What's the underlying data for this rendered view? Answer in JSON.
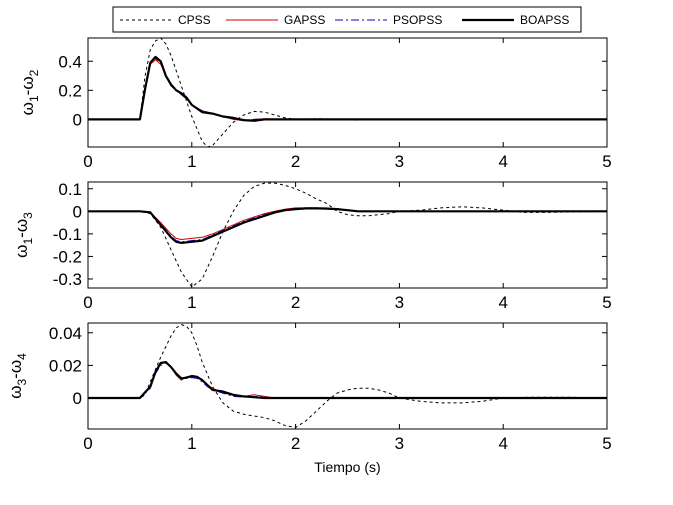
{
  "legend": {
    "entries": [
      {
        "name": "CPSS",
        "color": "#000000",
        "dash": "3,3",
        "width": 1
      },
      {
        "name": "GAPSS",
        "color": "#cc0000",
        "dash": "",
        "width": 1
      },
      {
        "name": "PSOPSS",
        "color": "#0000cc",
        "dash": "8,3,2,3",
        "width": 1
      },
      {
        "name": "BOAPSS",
        "color": "#000000",
        "dash": "",
        "width": 2.2
      }
    ]
  },
  "chart_data": [
    {
      "type": "line",
      "title": "",
      "xlabel": "",
      "ylabel": {
        "base1": "ω",
        "sub1": "1",
        "sep": "-",
        "base2": "ω",
        "sub2": "2"
      },
      "xlim": [
        0,
        5
      ],
      "ylim": [
        -0.19,
        0.56
      ],
      "xticks": [
        0,
        1,
        2,
        3,
        4,
        5
      ],
      "xtick_labels": [
        "0",
        "1",
        "2",
        "3",
        "4",
        "5"
      ],
      "yticks": [
        0,
        0.2,
        0.4
      ],
      "ytick_labels": [
        "0",
        "0.2",
        "0.4"
      ],
      "series": [
        {
          "name": "CPSS",
          "x": [
            0,
            0.5,
            0.55,
            0.6,
            0.65,
            0.7,
            0.75,
            0.8,
            0.9,
            1.0,
            1.1,
            1.15,
            1.2,
            1.3,
            1.4,
            1.5,
            1.6,
            1.7,
            1.8,
            1.9,
            2.0,
            2.2,
            2.4,
            2.6,
            2.8,
            3.0,
            3.2,
            3.5,
            4.0,
            4.5,
            5.0
          ],
          "y": [
            0,
            0,
            0.3,
            0.48,
            0.54,
            0.56,
            0.52,
            0.44,
            0.23,
            0.02,
            -0.15,
            -0.19,
            -0.18,
            -0.1,
            -0.02,
            0.03,
            0.055,
            0.05,
            0.03,
            0.01,
            0.0,
            0.005,
            0.0,
            -0.005,
            0.0,
            0.0,
            0.0,
            0.0,
            0.0,
            0.0,
            0.0
          ]
        },
        {
          "name": "GAPSS",
          "x": [
            0,
            0.5,
            0.55,
            0.6,
            0.65,
            0.7,
            0.75,
            0.8,
            0.85,
            0.9,
            0.95,
            1.0,
            1.1,
            1.2,
            1.3,
            1.4,
            1.5,
            1.6,
            1.7,
            1.8,
            2.0,
            2.5,
            3.0,
            4.0,
            5.0
          ],
          "y": [
            0,
            0,
            0.2,
            0.38,
            0.41,
            0.38,
            0.3,
            0.23,
            0.2,
            0.17,
            0.15,
            0.1,
            0.06,
            0.04,
            0.02,
            0.0,
            -0.01,
            0.0,
            0.005,
            0.0,
            0.0,
            0.0,
            0.0,
            0.0,
            0.0
          ]
        },
        {
          "name": "PSOPSS",
          "x": [
            0,
            0.5,
            0.55,
            0.6,
            0.65,
            0.7,
            0.75,
            0.8,
            0.85,
            0.9,
            0.95,
            1.0,
            1.1,
            1.2,
            1.3,
            1.4,
            1.5,
            1.6,
            1.7,
            1.8,
            2.0,
            2.5,
            3.0,
            4.0,
            5.0
          ],
          "y": [
            0,
            0,
            0.21,
            0.39,
            0.42,
            0.39,
            0.31,
            0.24,
            0.2,
            0.17,
            0.14,
            0.1,
            0.06,
            0.04,
            0.02,
            0.005,
            -0.005,
            0.0,
            0.003,
            0.0,
            0.0,
            0.0,
            0.0,
            0.0,
            0.0
          ]
        },
        {
          "name": "BOAPSS",
          "x": [
            0,
            0.5,
            0.55,
            0.6,
            0.65,
            0.7,
            0.75,
            0.8,
            0.85,
            0.9,
            0.95,
            1.0,
            1.1,
            1.2,
            1.3,
            1.4,
            1.5,
            1.6,
            1.7,
            1.8,
            2.0,
            2.5,
            3.0,
            4.0,
            5.0
          ],
          "y": [
            0,
            0,
            0.21,
            0.39,
            0.43,
            0.4,
            0.3,
            0.24,
            0.2,
            0.18,
            0.15,
            0.1,
            0.05,
            0.04,
            0.02,
            0.01,
            -0.005,
            -0.01,
            0.0,
            0.0,
            0.0,
            0.0,
            0.0,
            0.0,
            0.0
          ]
        }
      ]
    },
    {
      "type": "line",
      "title": "",
      "xlabel": "",
      "ylabel": {
        "base1": "ω",
        "sub1": "1",
        "sep": "-",
        "base2": "ω",
        "sub2": "3"
      },
      "xlim": [
        0,
        5
      ],
      "ylim": [
        -0.34,
        0.13
      ],
      "xticks": [
        0,
        1,
        2,
        3,
        4,
        5
      ],
      "xtick_labels": [
        "0",
        "1",
        "2",
        "3",
        "4",
        "5"
      ],
      "yticks": [
        -0.3,
        -0.2,
        -0.1,
        0,
        0.1
      ],
      "ytick_labels": [
        "-0.3",
        "-0.2",
        "-0.1",
        "0",
        "0.1"
      ],
      "series": [
        {
          "name": "CPSS",
          "x": [
            0,
            0.5,
            0.6,
            0.7,
            0.8,
            0.9,
            1.0,
            1.1,
            1.2,
            1.3,
            1.4,
            1.5,
            1.6,
            1.7,
            1.8,
            1.9,
            2.0,
            2.1,
            2.2,
            2.3,
            2.4,
            2.5,
            2.6,
            2.7,
            2.8,
            2.9,
            3.0,
            3.2,
            3.4,
            3.6,
            3.8,
            4.0,
            4.2,
            4.4,
            4.6,
            5.0
          ],
          "y": [
            0,
            0,
            -0.01,
            -0.07,
            -0.17,
            -0.27,
            -0.335,
            -0.3,
            -0.2,
            -0.09,
            0.0,
            0.07,
            0.11,
            0.125,
            0.125,
            0.115,
            0.1,
            0.08,
            0.055,
            0.035,
            0.0,
            -0.015,
            -0.02,
            -0.02,
            -0.015,
            -0.01,
            0.0,
            0.005,
            0.015,
            0.02,
            0.015,
            0.005,
            -0.005,
            -0.005,
            -0.003,
            0
          ]
        },
        {
          "name": "GAPSS",
          "x": [
            0,
            0.5,
            0.6,
            0.7,
            0.8,
            0.85,
            0.9,
            1.0,
            1.1,
            1.2,
            1.3,
            1.4,
            1.5,
            1.6,
            1.7,
            1.8,
            1.9,
            2.0,
            2.1,
            2.2,
            2.3,
            2.4,
            2.5,
            2.6,
            2.8,
            3.0,
            3.5,
            4.0,
            5.0
          ],
          "y": [
            0,
            0,
            -0.005,
            -0.05,
            -0.1,
            -0.12,
            -0.125,
            -0.12,
            -0.115,
            -0.1,
            -0.08,
            -0.06,
            -0.04,
            -0.025,
            -0.01,
            0.0,
            0.01,
            0.015,
            0.015,
            0.015,
            0.015,
            0.01,
            0.005,
            0.0,
            0.0,
            0.0,
            0.0,
            0.0,
            0.0
          ]
        },
        {
          "name": "PSOPSS",
          "x": [
            0,
            0.5,
            0.6,
            0.7,
            0.8,
            0.85,
            0.9,
            1.0,
            1.1,
            1.2,
            1.3,
            1.4,
            1.5,
            1.6,
            1.7,
            1.8,
            1.9,
            2.0,
            2.1,
            2.2,
            2.3,
            2.4,
            2.5,
            2.6,
            2.8,
            3.0,
            3.5,
            4.0,
            5.0
          ],
          "y": [
            0,
            0,
            -0.005,
            -0.055,
            -0.11,
            -0.13,
            -0.135,
            -0.13,
            -0.125,
            -0.105,
            -0.085,
            -0.065,
            -0.045,
            -0.03,
            -0.015,
            -0.003,
            0.007,
            0.012,
            0.015,
            0.015,
            0.013,
            0.01,
            0.005,
            0.0,
            0.0,
            0.0,
            0.0,
            0.0,
            0.0
          ]
        },
        {
          "name": "BOAPSS",
          "x": [
            0,
            0.5,
            0.6,
            0.7,
            0.8,
            0.85,
            0.9,
            1.0,
            1.1,
            1.2,
            1.3,
            1.4,
            1.5,
            1.6,
            1.7,
            1.8,
            1.9,
            2.0,
            2.1,
            2.2,
            2.3,
            2.4,
            2.5,
            2.6,
            2.8,
            3.0,
            3.5,
            4.0,
            5.0
          ],
          "y": [
            0,
            0,
            -0.005,
            -0.06,
            -0.115,
            -0.135,
            -0.14,
            -0.135,
            -0.13,
            -0.11,
            -0.09,
            -0.07,
            -0.05,
            -0.035,
            -0.02,
            -0.005,
            0.005,
            0.01,
            0.013,
            0.013,
            0.012,
            0.01,
            0.005,
            0.0,
            0.0,
            0.0,
            0.0,
            0.0,
            0.0
          ]
        }
      ]
    },
    {
      "type": "line",
      "title": "",
      "xlabel": "Tiempo (s)",
      "ylabel": {
        "base1": "ω",
        "sub1": "3",
        "sep": "-",
        "base2": "ω",
        "sub2": "4"
      },
      "xlim": [
        0,
        5
      ],
      "ylim": [
        -0.019,
        0.046
      ],
      "xticks": [
        0,
        1,
        2,
        3,
        4,
        5
      ],
      "xtick_labels": [
        "0",
        "1",
        "2",
        "3",
        "4",
        "5"
      ],
      "yticks": [
        0,
        0.02,
        0.04
      ],
      "ytick_labels": [
        "0",
        "0.02",
        "0.04"
      ],
      "series": [
        {
          "name": "CPSS",
          "x": [
            0,
            0.5,
            0.55,
            0.6,
            0.7,
            0.8,
            0.85,
            0.9,
            0.95,
            1.0,
            1.05,
            1.1,
            1.2,
            1.3,
            1.4,
            1.5,
            1.6,
            1.7,
            1.8,
            1.9,
            2.0,
            2.1,
            2.2,
            2.3,
            2.4,
            2.5,
            2.6,
            2.7,
            2.8,
            2.9,
            3.0,
            3.2,
            3.4,
            3.6,
            3.8,
            4.0,
            4.3,
            4.6,
            5.0
          ],
          "y": [
            0,
            0,
            0.002,
            0.01,
            0.025,
            0.038,
            0.043,
            0.045,
            0.044,
            0.04,
            0.032,
            0.022,
            0.007,
            -0.003,
            -0.008,
            -0.01,
            -0.011,
            -0.012,
            -0.014,
            -0.017,
            -0.018,
            -0.014,
            -0.008,
            -0.002,
            0.003,
            0.005,
            0.006,
            0.006,
            0.005,
            0.003,
            0.0,
            -0.002,
            -0.003,
            -0.003,
            -0.002,
            0.0,
            0.0005,
            0.0005,
            0
          ]
        },
        {
          "name": "GAPSS",
          "x": [
            0,
            0.5,
            0.6,
            0.65,
            0.7,
            0.75,
            0.8,
            0.85,
            0.9,
            0.95,
            1.0,
            1.05,
            1.1,
            1.15,
            1.2,
            1.3,
            1.4,
            1.5,
            1.6,
            1.7,
            1.8,
            2.0,
            2.5,
            3.0,
            4.0,
            5.0
          ],
          "y": [
            0,
            0,
            0.007,
            0.016,
            0.021,
            0.022,
            0.019,
            0.014,
            0.011,
            0.013,
            0.0135,
            0.013,
            0.011,
            0.008,
            0.006,
            0.003,
            0.002,
            0.001,
            0.002,
            0.001,
            0.0,
            0.0,
            0.0,
            0.0,
            0.0,
            0.0
          ]
        },
        {
          "name": "PSOPSS",
          "x": [
            0,
            0.5,
            0.6,
            0.65,
            0.7,
            0.75,
            0.8,
            0.85,
            0.9,
            0.95,
            1.0,
            1.05,
            1.1,
            1.15,
            1.2,
            1.3,
            1.4,
            1.5,
            1.6,
            1.7,
            1.8,
            2.0,
            2.5,
            3.0,
            4.0,
            5.0
          ],
          "y": [
            0,
            0,
            0.006,
            0.015,
            0.02,
            0.0215,
            0.019,
            0.015,
            0.012,
            0.012,
            0.0125,
            0.012,
            0.01,
            0.007,
            0.005,
            0.003,
            0.001,
            0.0005,
            0.001,
            0.0005,
            0.0,
            0.0,
            0.0,
            0.0,
            0.0,
            0.0
          ]
        },
        {
          "name": "BOAPSS",
          "x": [
            0,
            0.5,
            0.6,
            0.65,
            0.7,
            0.75,
            0.8,
            0.85,
            0.9,
            0.95,
            1.0,
            1.05,
            1.1,
            1.15,
            1.2,
            1.3,
            1.4,
            1.5,
            1.6,
            1.7,
            1.8,
            2.0,
            2.5,
            3.0,
            4.0,
            5.0
          ],
          "y": [
            0,
            0,
            0.007,
            0.016,
            0.0215,
            0.022,
            0.019,
            0.015,
            0.012,
            0.0125,
            0.0135,
            0.013,
            0.011,
            0.008,
            0.005,
            0.004,
            0.002,
            0.001,
            0.0005,
            0.0,
            0.0,
            0.0,
            0.0,
            0.0,
            0.0,
            0.0
          ]
        }
      ]
    }
  ]
}
